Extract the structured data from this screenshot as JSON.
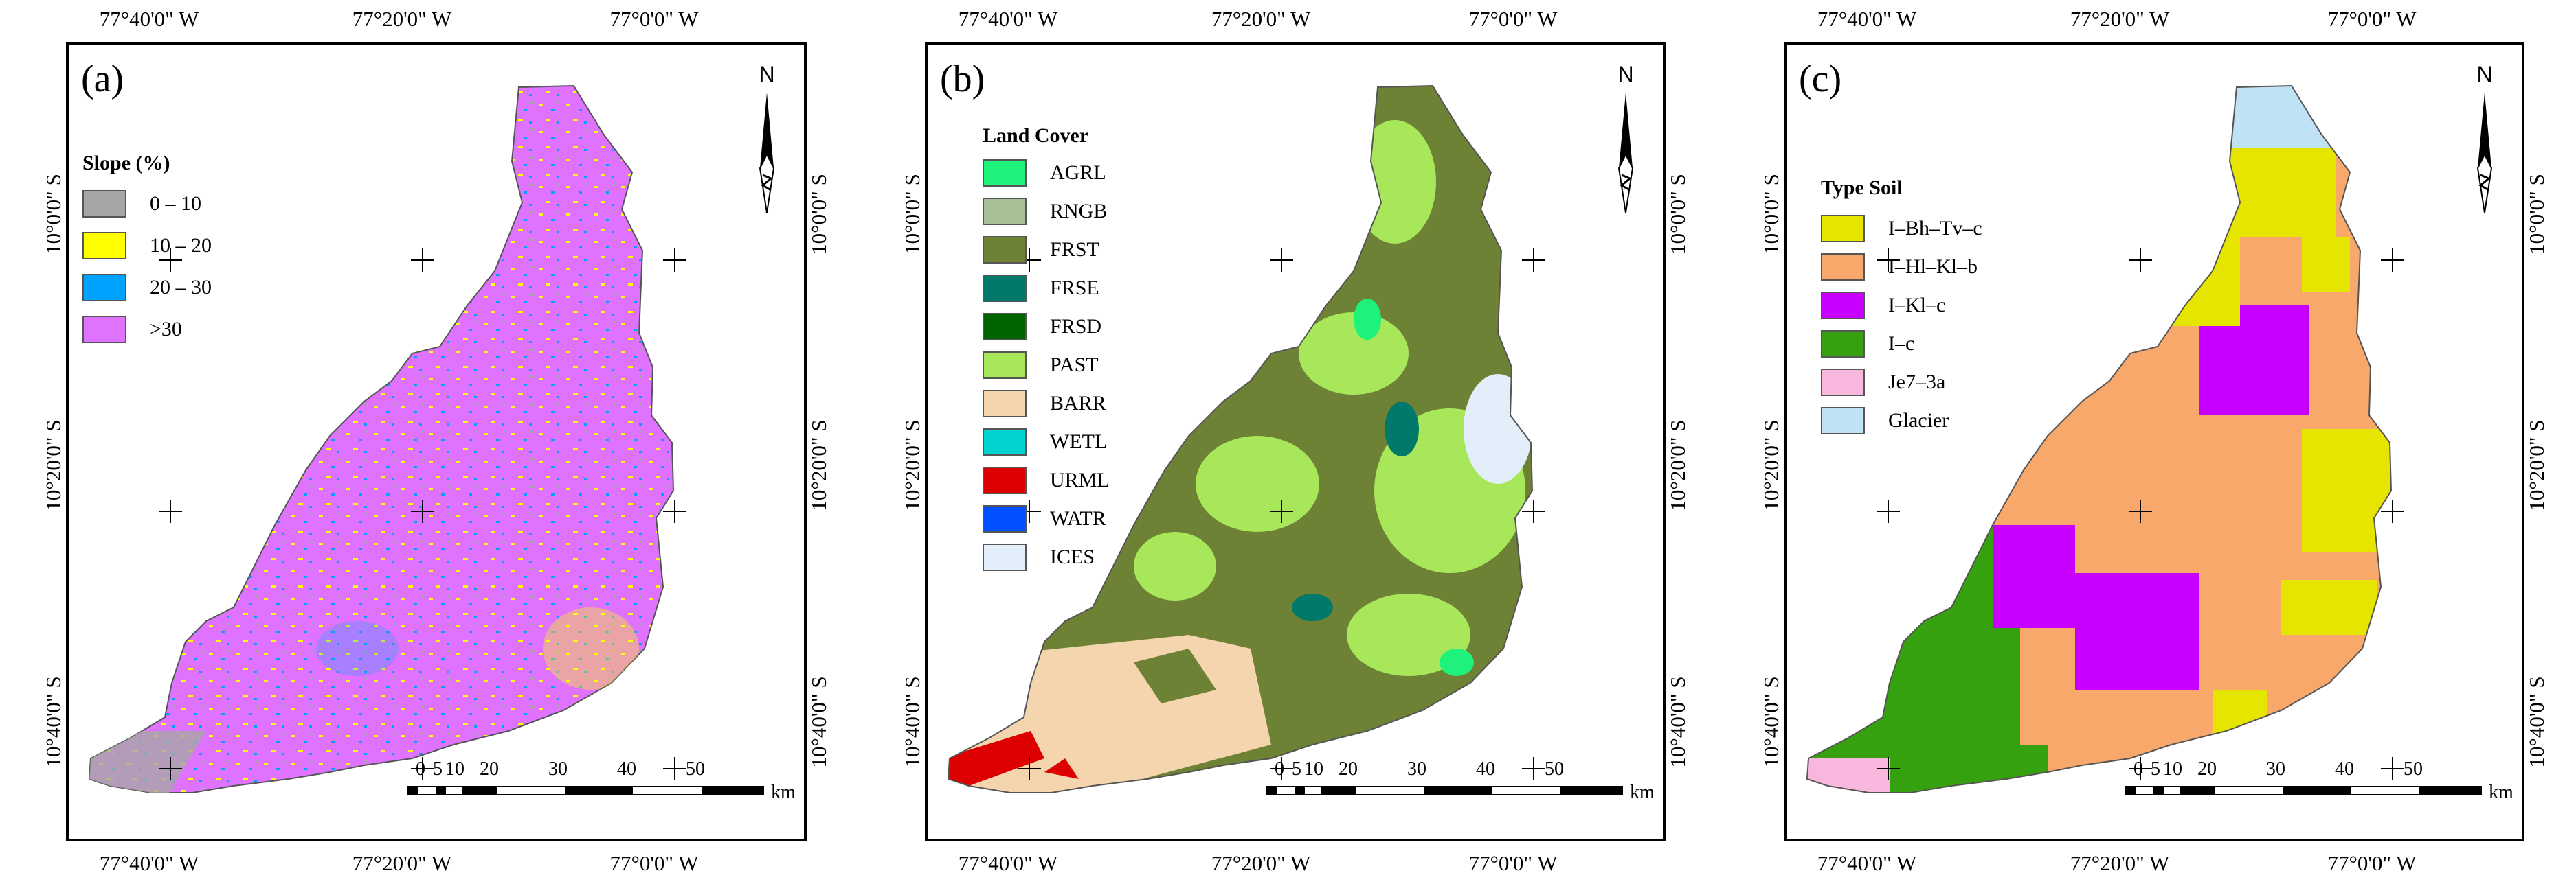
{
  "coordinates": {
    "top_longitudes": [
      "77°40'0\" W",
      "77°20'0\" W",
      "77°0'0\" W"
    ],
    "bottom_longitudes": [
      "77°40'0\" W",
      "77°20'0\" W",
      "77°0'0\" W"
    ],
    "left_latitudes": [
      "10°0'0\" S",
      "10°20'0\" S",
      "10°40'0\" S"
    ],
    "right_latitudes": [
      "10°0'0\" S",
      "10°20'0\" S",
      "10°40'0\" S"
    ]
  },
  "scale_bar": {
    "ticks": [
      "0",
      "5",
      "10",
      "20",
      "30",
      "40",
      "50"
    ],
    "unit": "km"
  },
  "north_arrow": {
    "label": "N",
    "icon": "north-arrow-icon"
  },
  "panels": [
    {
      "label": "(a)",
      "legend_title": "Slope (%)",
      "legend": [
        {
          "label": "0 – 10",
          "color": "#a6a6a6"
        },
        {
          "label": "10 – 20",
          "color": "#ffff00"
        },
        {
          "label": "20 – 30",
          "color": "#00a2ff"
        },
        {
          "label": ">30",
          "color": "#df73ff"
        }
      ]
    },
    {
      "label": "(b)",
      "legend_title": "Land Cover",
      "legend": [
        {
          "label": "AGRL",
          "color": "#1ff27a"
        },
        {
          "label": "RNGB",
          "color": "#a6bf96"
        },
        {
          "label": "FRST",
          "color": "#6e8236"
        },
        {
          "label": "FRSE",
          "color": "#00796b"
        },
        {
          "label": "FRSD",
          "color": "#006400"
        },
        {
          "label": "PAST",
          "color": "#a8e75a"
        },
        {
          "label": "BARR",
          "color": "#f5d5ad"
        },
        {
          "label": "WETL",
          "color": "#00d2d2"
        },
        {
          "label": "URML",
          "color": "#dc0000"
        },
        {
          "label": "WATR",
          "color": "#0050ff"
        },
        {
          "label": "ICES",
          "color": "#e2effa"
        }
      ]
    },
    {
      "label": "(c)",
      "legend_title": "Type Soil",
      "legend": [
        {
          "label": "I–Bh–Tv–c",
          "color": "#e5e500"
        },
        {
          "label": "I–Hl–Kl–b",
          "color": "#f8a86a"
        },
        {
          "label": "I–Kl–c",
          "color": "#c800ff"
        },
        {
          "label": "I–c",
          "color": "#36a10f"
        },
        {
          "label": "Je7–3a",
          "color": "#f8b7dd"
        },
        {
          "label": "Glacier",
          "color": "#bfe3f5"
        }
      ]
    }
  ]
}
